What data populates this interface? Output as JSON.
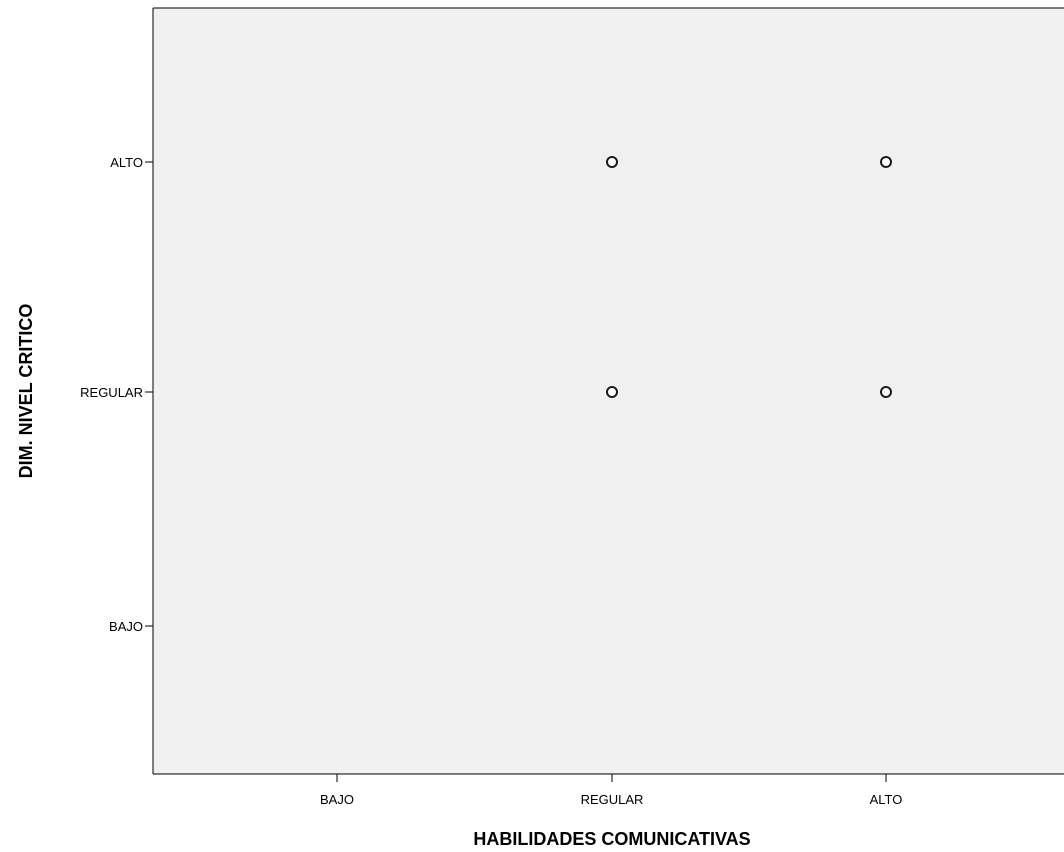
{
  "chart_data": {
    "type": "scatter",
    "title": "",
    "xlabel": "HABILIDADES COMUNICATIVAS",
    "ylabel": "DIM. NIVEL CRITICO",
    "x_categories": [
      "BAJO",
      "REGULAR",
      "ALTO"
    ],
    "y_categories": [
      "BAJO",
      "REGULAR",
      "ALTO"
    ],
    "points": [
      {
        "x": "REGULAR",
        "y": "ALTO"
      },
      {
        "x": "ALTO",
        "y": "ALTO"
      },
      {
        "x": "REGULAR",
        "y": "REGULAR"
      },
      {
        "x": "ALTO",
        "y": "REGULAR"
      }
    ],
    "grid": false,
    "legend": "none",
    "colors": {
      "plot_background": "#f0f0f0",
      "axis": "#000000",
      "marker_stroke": "#1a1a1a",
      "marker_fill": "#ffffff"
    }
  }
}
